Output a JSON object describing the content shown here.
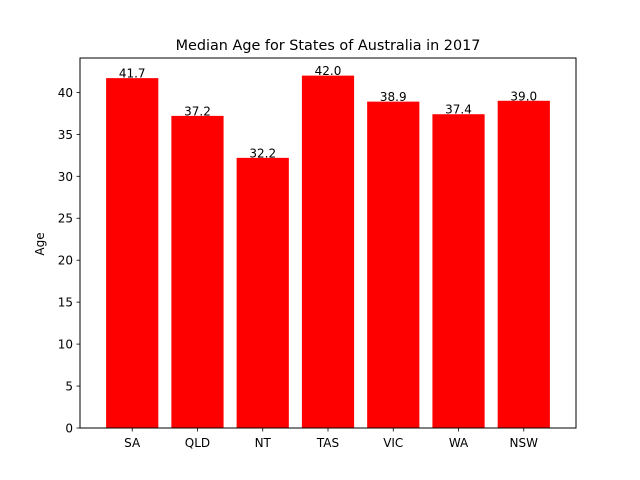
{
  "chart_data": {
    "type": "bar",
    "title": "Median Age for States of Australia in 2017",
    "xlabel": "",
    "ylabel": "Age",
    "categories": [
      "SA",
      "QLD",
      "NT",
      "TAS",
      "VIC",
      "WA",
      "NSW"
    ],
    "values": [
      41.7,
      37.2,
      32.2,
      42.0,
      38.9,
      37.4,
      39.0
    ],
    "value_labels": [
      "41.7",
      "37.2",
      "32.2",
      "42.0",
      "38.9",
      "37.4",
      "39.0"
    ],
    "ylim": [
      0,
      44.1
    ],
    "yticks": [
      0,
      5,
      10,
      15,
      20,
      25,
      30,
      35,
      40
    ],
    "bar_color": "#ff0000",
    "grid": false,
    "legend": "none"
  }
}
